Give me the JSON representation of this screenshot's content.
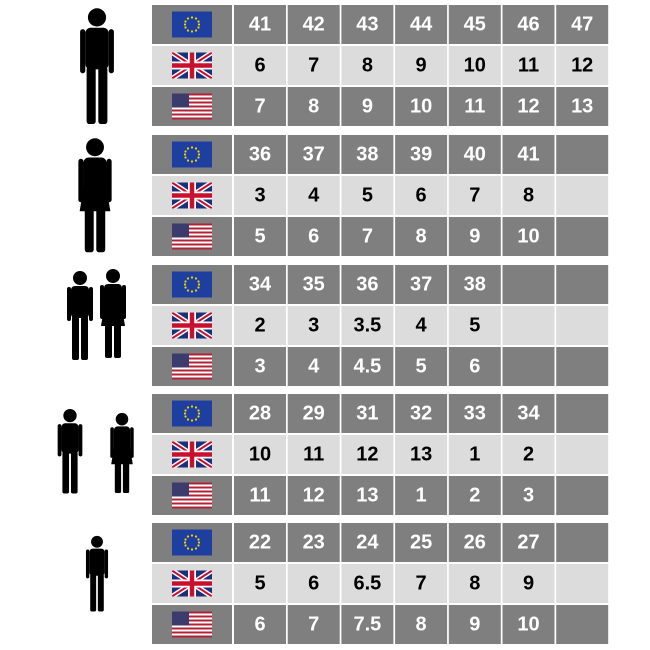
{
  "groups": [
    [
      [
        41,
        42,
        43,
        44,
        45,
        46,
        47
      ],
      [
        6,
        7,
        8,
        9,
        10,
        11,
        12
      ],
      [
        7,
        8,
        9,
        10,
        11,
        12,
        13
      ]
    ],
    [
      [
        36,
        37,
        38,
        39,
        40,
        41
      ],
      [
        3,
        4,
        5,
        6,
        7,
        8
      ],
      [
        5,
        6,
        7,
        8,
        9,
        10
      ]
    ],
    [
      [
        34,
        35,
        36,
        37,
        38
      ],
      [
        2,
        3,
        3.5,
        4,
        5
      ],
      [
        3,
        4,
        4.5,
        5,
        6
      ]
    ],
    [
      [
        28,
        29,
        31,
        32,
        33,
        34
      ],
      [
        10,
        11,
        12,
        13,
        1,
        2
      ],
      [
        11,
        12,
        13,
        1,
        2,
        3
      ]
    ],
    [
      [
        22,
        23,
        24,
        25,
        26,
        27
      ],
      [
        5,
        6,
        6.5,
        7,
        8,
        9
      ],
      [
        6,
        7,
        7.5,
        8,
        9,
        10
      ]
    ]
  ]
}
